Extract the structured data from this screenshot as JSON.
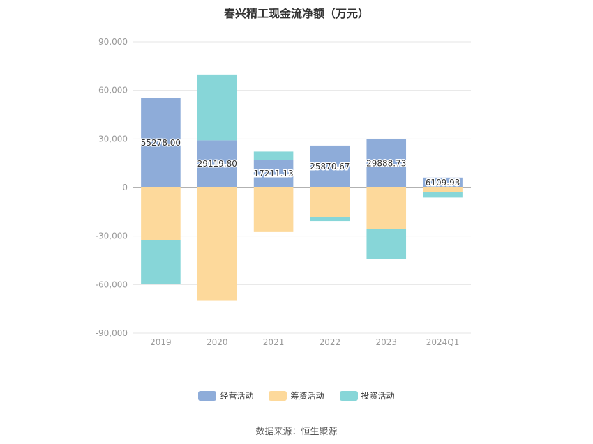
{
  "chart_data": {
    "type": "bar",
    "stacked": true,
    "title": "春兴精工现金流净额（万元）",
    "categories": [
      "2019",
      "2020",
      "2021",
      "2022",
      "2023",
      "2024Q1"
    ],
    "series": [
      {
        "name": "经营活动",
        "color": "#8eacd9",
        "values": [
          55278.0,
          29119.8,
          17211.13,
          25870.67,
          29888.73,
          6109.93
        ]
      },
      {
        "name": "筹资活动",
        "color": "#fdd99b",
        "values": [
          -32500,
          -70000,
          -27500,
          -18500,
          -25500,
          -3000
        ]
      },
      {
        "name": "投资活动",
        "color": "#87d6d8",
        "values": [
          -27000,
          40700,
          5000,
          -2200,
          -18800,
          -3200
        ]
      }
    ],
    "data_labels": [
      "55278.00",
      "29119.80",
      "17211.13",
      "25870.67",
      "29888.73",
      "6109.93"
    ],
    "ylim": [
      -90000,
      90000
    ],
    "yticks": [
      "90,000",
      "60,000",
      "30,000",
      "0",
      "-30,000",
      "-60,000",
      "-90,000"
    ],
    "grid": true,
    "legend_position": "bottom"
  },
  "source_text": "数据来源：恒生聚源"
}
